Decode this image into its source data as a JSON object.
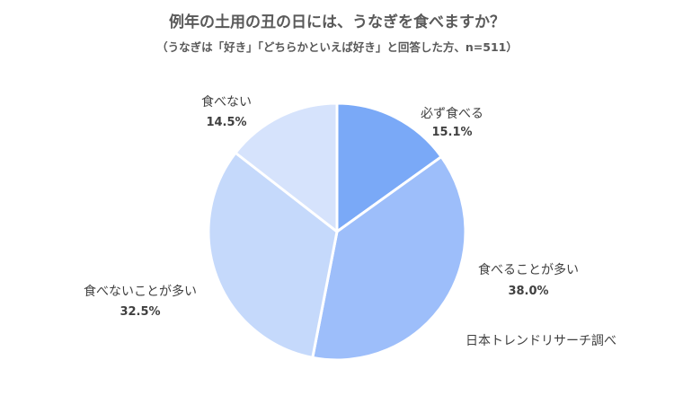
{
  "chart_data": {
    "type": "pie",
    "title": "例年の土用の丑の日には、うなぎを食べますか？",
    "subtitle": "（うなぎは「好き」「どちらかといえば好き」と回答した方、n=511）",
    "slices": [
      {
        "label": "必ず食べる",
        "value": 15.1,
        "value_label": "15.1%",
        "color": "#7aa9f7"
      },
      {
        "label": "食べることが多い",
        "value": 38.0,
        "value_label": "38.0%",
        "color": "#9dbefa"
      },
      {
        "label": "食べないことが多い",
        "value": 32.5,
        "value_label": "32.5%",
        "color": "#c5d9fb"
      },
      {
        "label": "食べない",
        "value": 14.5,
        "value_label": "14.5%",
        "color": "#d6e3fc"
      }
    ],
    "start_angle": "12 o'clock",
    "direction": "clockwise",
    "legend": "none",
    "source": "日本トレンドリサーチ調べ"
  }
}
